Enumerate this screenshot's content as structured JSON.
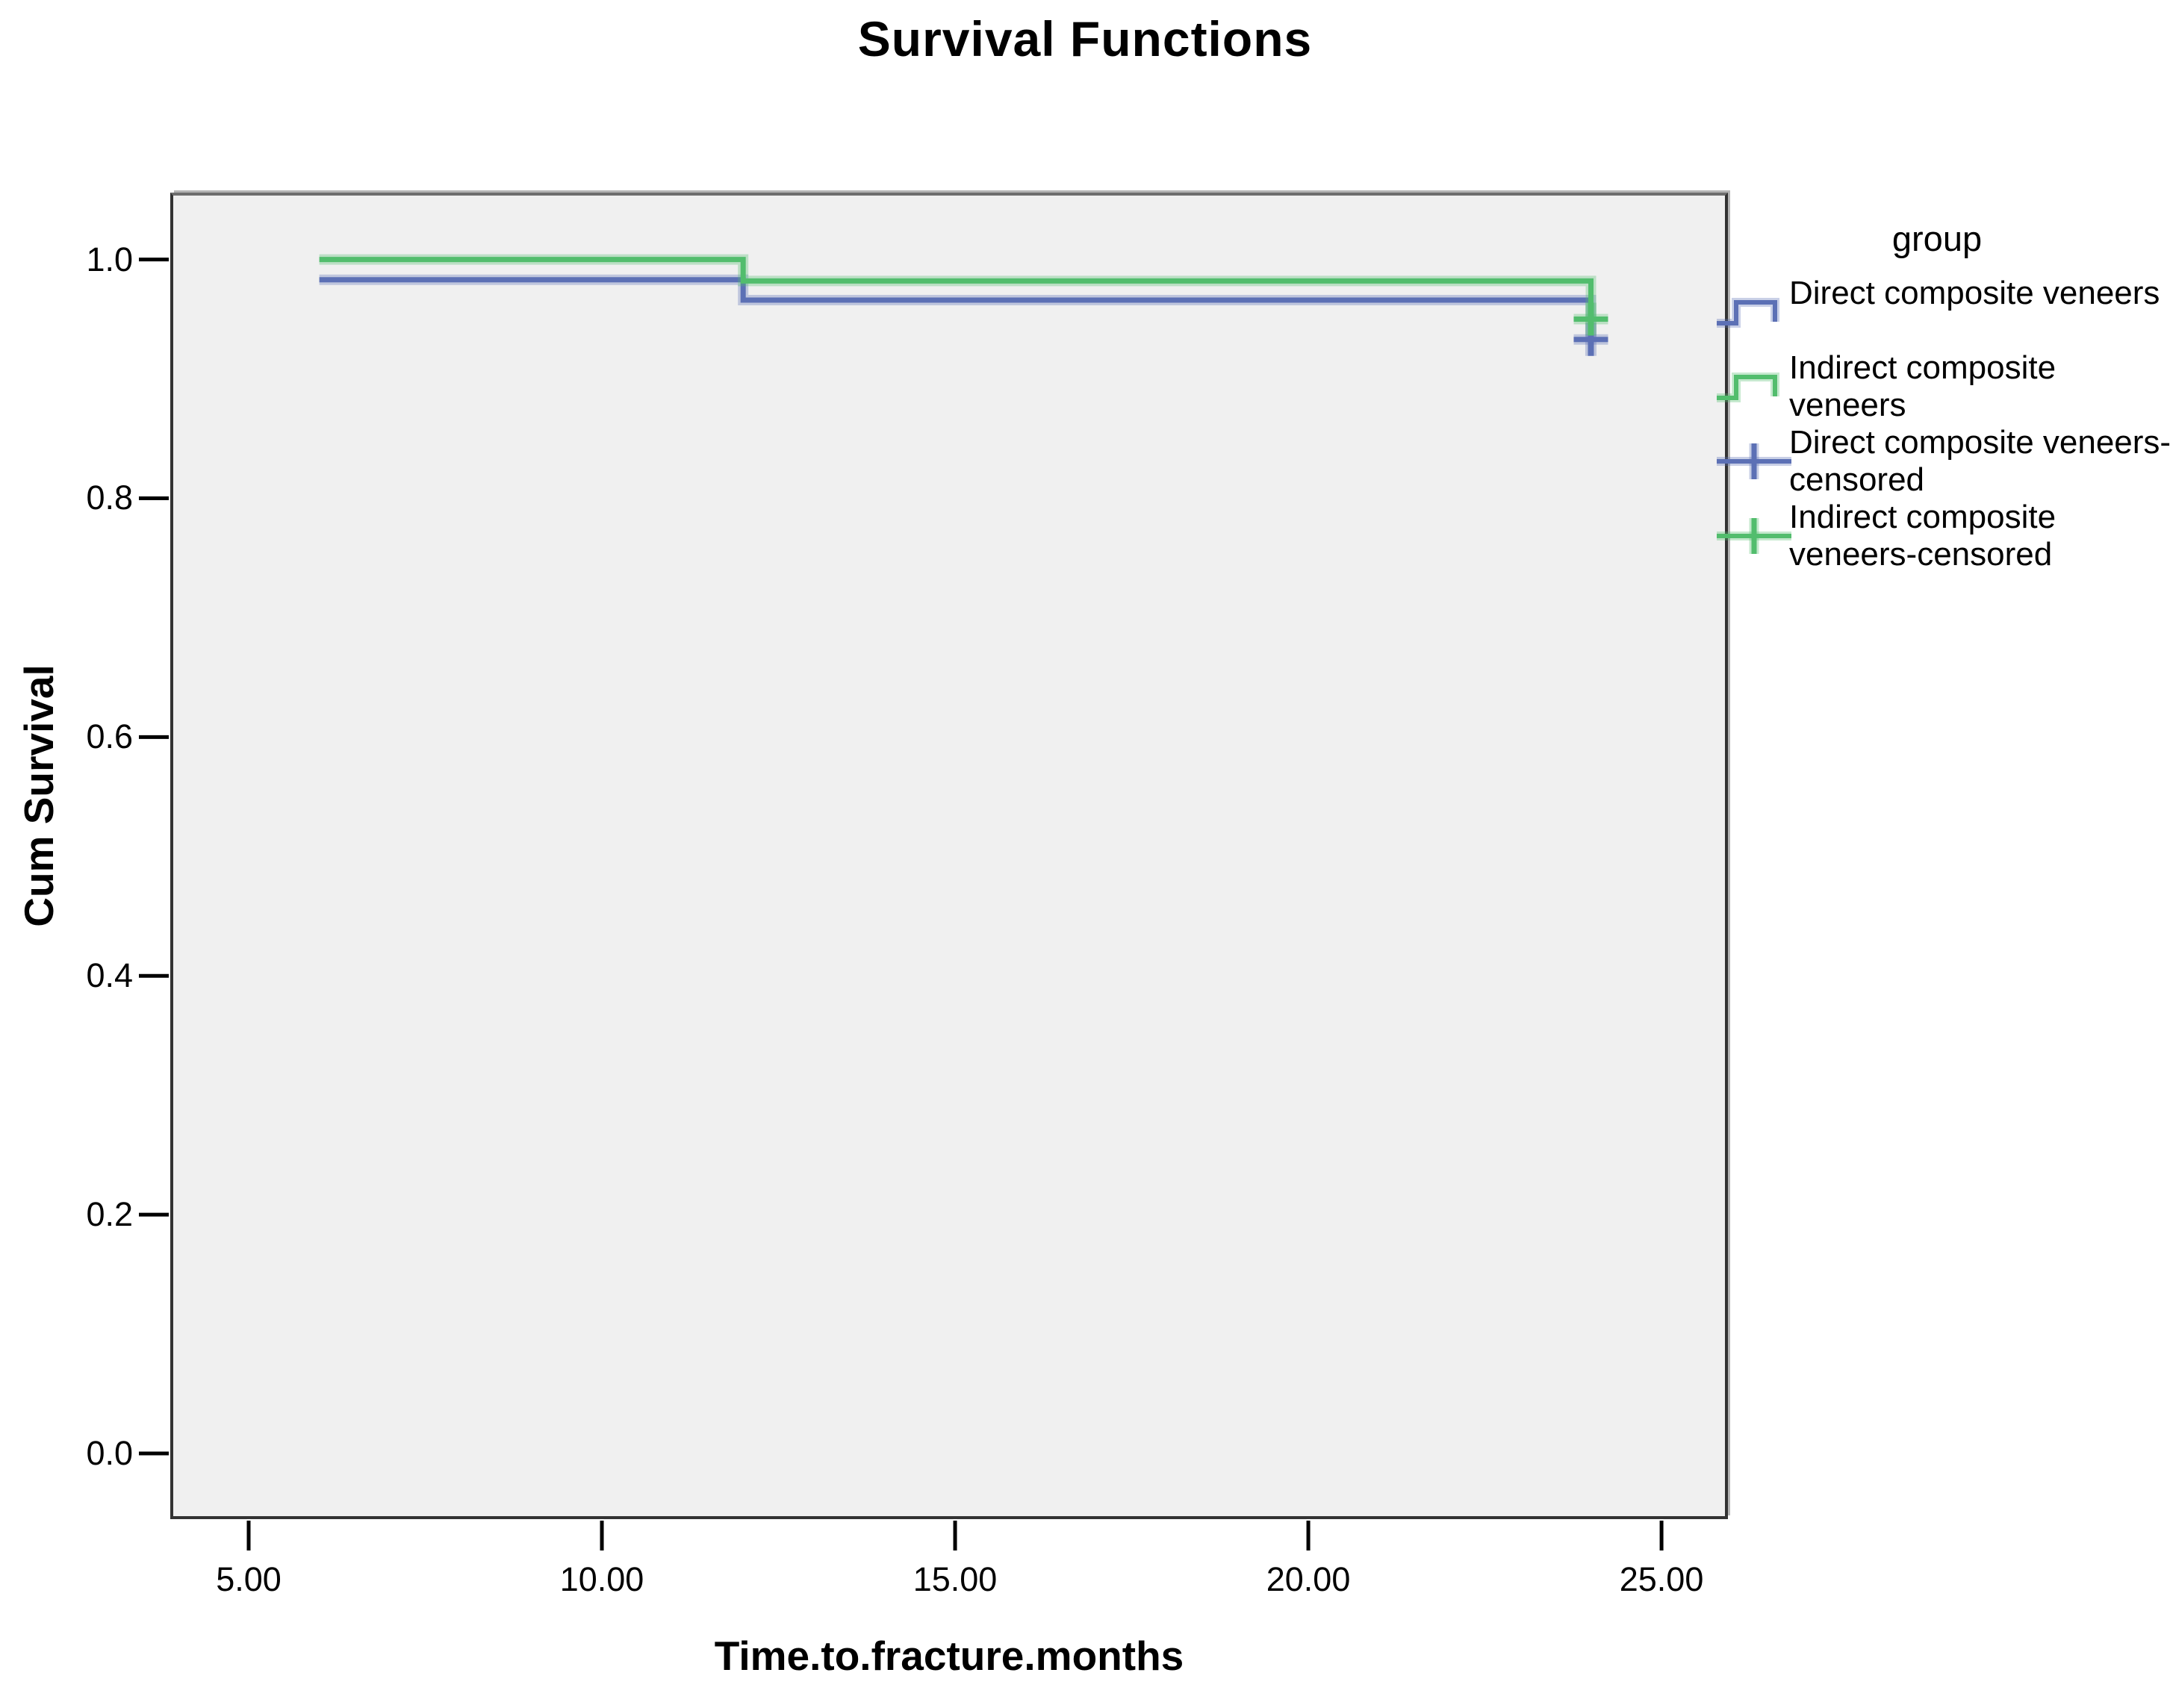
{
  "figure": {
    "title": "Survival Functions"
  },
  "chart_data": {
    "type": "line",
    "subtype": "kaplan-meier-step",
    "title": "Survival Functions",
    "xlabel": "Time.to.fracture.months",
    "ylabel": "Cum Survival",
    "xlim": [
      3.89,
      25.94
    ],
    "ylim": [
      -0.055,
      1.056
    ],
    "x_ticks": [
      5,
      10,
      15,
      20,
      25
    ],
    "x_tick_labels": [
      "5.00",
      "10.00",
      "15.00",
      "20.00",
      "25.00"
    ],
    "y_ticks": [
      0.0,
      0.2,
      0.4,
      0.6,
      0.8,
      1.0
    ],
    "y_tick_labels": [
      "0.0",
      "0.2",
      "0.4",
      "0.6",
      "0.8",
      "1.0"
    ],
    "grid": false,
    "plot_background": "#f0f0f0",
    "legend_position": "right",
    "series": [
      {
        "name": "Direct composite veneers",
        "color": "#5c70b5",
        "step_points": [
          [
            6,
            0.983
          ],
          [
            12,
            0.983
          ],
          [
            12,
            0.966
          ],
          [
            24,
            0.966
          ],
          [
            24,
            0.933
          ]
        ],
        "censored_points": [
          [
            24,
            0.933
          ]
        ]
      },
      {
        "name": "Indirect composite veneers",
        "color": "#52bd6d",
        "step_points": [
          [
            6,
            1.0
          ],
          [
            12,
            1.0
          ],
          [
            12,
            0.982
          ],
          [
            24,
            0.982
          ],
          [
            24,
            0.95
          ]
        ],
        "censored_points": [
          [
            24,
            0.95
          ]
        ]
      }
    ]
  },
  "legend": {
    "title": "group",
    "items": [
      {
        "label": "Direct composite veneers",
        "marker": "step",
        "color": "#5c70b5"
      },
      {
        "label": "Indirect composite veneers",
        "marker": "step",
        "color": "#52bd6d"
      },
      {
        "label": "Direct composite veneers-censored",
        "marker": "censored",
        "color": "#5c70b5"
      },
      {
        "label": "Indirect composite veneers-censored",
        "marker": "censored",
        "color": "#52bd6d"
      }
    ]
  }
}
